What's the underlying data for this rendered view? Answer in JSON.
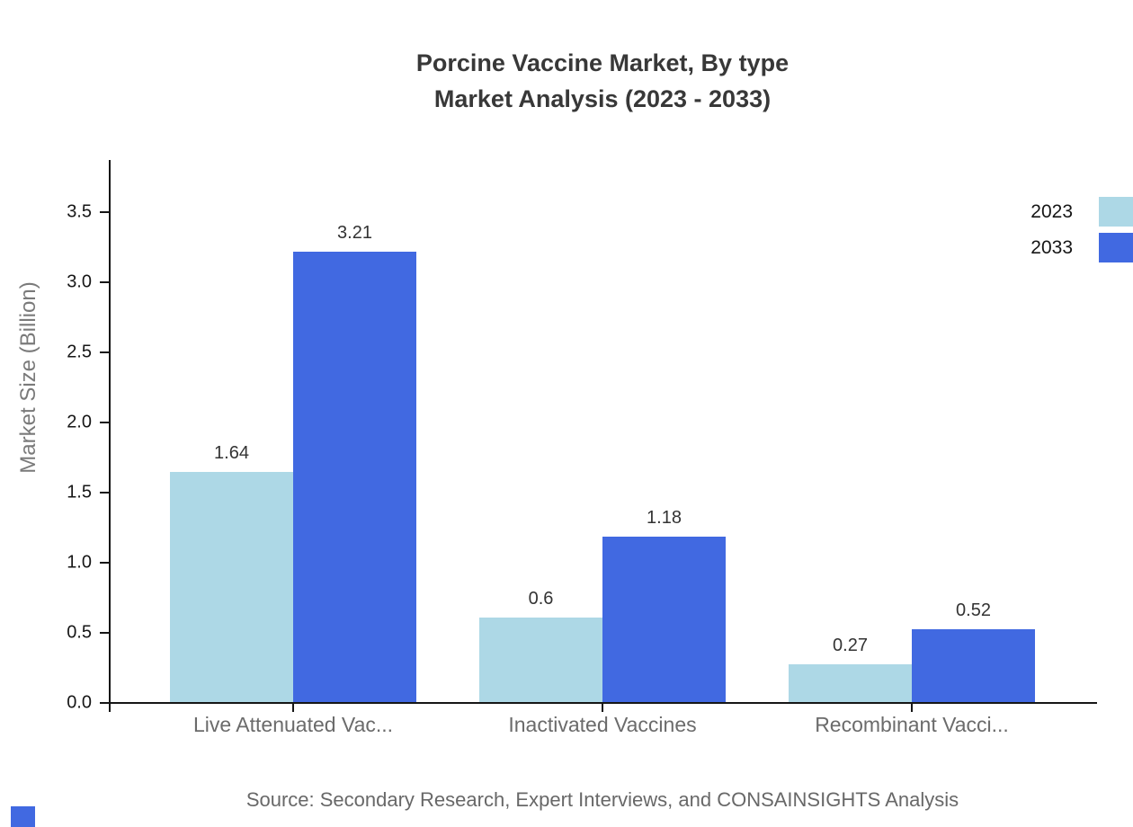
{
  "title": {
    "line1": "Porcine Vaccine Market, By type",
    "line2": "Market Analysis (2023 - 2033)"
  },
  "source": "Source: Secondary Research, Expert Interviews, and CONSAINSIGHTS Analysis",
  "brand_color": "#4169E1",
  "chart_data": {
    "type": "bar",
    "title": "Porcine Vaccine Market, By type — Market Analysis (2023 - 2033)",
    "categories": [
      "Live Attenuated Vac...",
      "Inactivated Vaccines",
      "Recombinant Vacci..."
    ],
    "series": [
      {
        "name": "2023",
        "color": "#ADD8E6",
        "values": [
          1.64,
          0.6,
          0.27
        ]
      },
      {
        "name": "2033",
        "color": "#4169E1",
        "values": [
          3.21,
          1.18,
          0.52
        ]
      }
    ],
    "xlabel": "",
    "ylabel": "Market Size (Billion)",
    "ylim": [
      0,
      3.5
    ],
    "yticks": [
      "0.0",
      "0.5",
      "1.0",
      "1.5",
      "2.0",
      "2.5",
      "3.0",
      "3.5"
    ],
    "grid": false,
    "legend_position": "top-right",
    "value_labels_shown": true
  }
}
